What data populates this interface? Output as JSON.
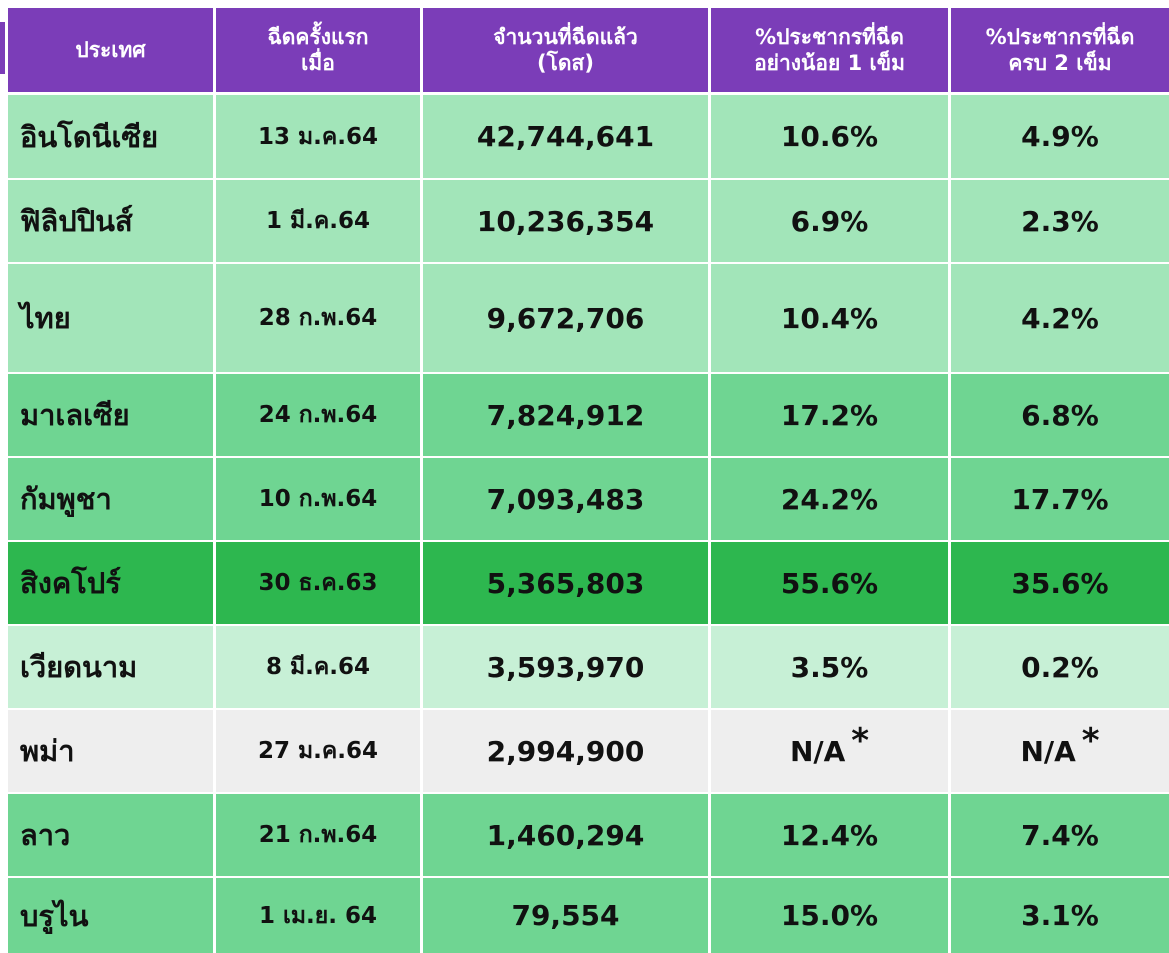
{
  "table": {
    "header": [
      "ประเทศ",
      "ฉีดครั้งแรก\nเมื่อ",
      "จำนวนที่ฉีดแล้ว\n(โดส)",
      "%ประชากรที่ฉีด\nอย่างน้อย 1 เข็ม",
      "%ประชากรที่ฉีด\nครบ 2 เข็ม"
    ],
    "footnote_mark": "*",
    "rows": [
      [
        "อินโดนีเซีย",
        "13 ม.ค.64",
        "42,744,641",
        "10.6%",
        "4.9%"
      ],
      [
        "ฟิลิปปินส์",
        "1 มี.ค.64",
        "10,236,354",
        "6.9%",
        "2.3%"
      ],
      [
        "ไทย",
        "28 ก.พ.64",
        "9,672,706",
        "10.4%",
        "4.2%"
      ],
      [
        "มาเลเซีย",
        "24 ก.พ.64",
        "7,824,912",
        "17.2%",
        "6.8%"
      ],
      [
        "กัมพูชา",
        "10 ก.พ.64",
        "7,093,483",
        "24.2%",
        "17.7%"
      ],
      [
        "สิงคโปร์",
        "30 ธ.ค.63",
        "5,365,803",
        "55.6%",
        "35.6%"
      ],
      [
        "เวียดนาม",
        "8 มี.ค.64",
        "3,593,970",
        "3.5%",
        "0.2%"
      ],
      [
        "พม่า",
        "27 ม.ค.64",
        "2,994,900",
        "N/A",
        "N/A"
      ],
      [
        "ลาว",
        "21 ก.พ.64",
        "1,460,294",
        "12.4%",
        "7.4%"
      ],
      [
        "บรูไน",
        "1 เม.ย. 64",
        "79,554",
        "15.0%",
        "3.1%"
      ]
    ]
  }
}
